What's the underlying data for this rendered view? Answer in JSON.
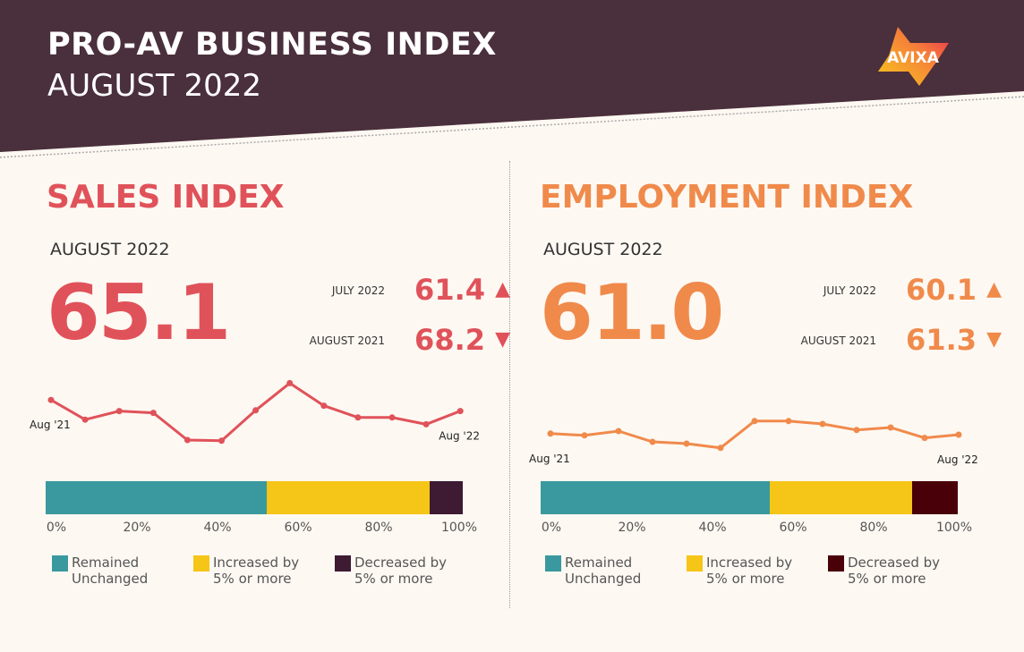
{
  "header": {
    "title": "PRO-AV BUSINESS INDEX",
    "subtitle": "AUGUST 2022",
    "logo_text": "AVIXA",
    "bg": "#4a2f3c"
  },
  "chart_data": [
    {
      "type": "line",
      "title": "SALES INDEX",
      "color": "#e0525a",
      "current_label": "AUGUST 2022",
      "current": "65.1",
      "comparisons": [
        {
          "label": "JULY 2022",
          "value": "61.4",
          "dir": "up"
        },
        {
          "label": "AUGUST 2021",
          "value": "68.2",
          "dir": "down"
        }
      ],
      "x_start_label": "Aug '21",
      "x_end_label": "Aug '22",
      "values": [
        68.2,
        62.7,
        65.1,
        64.6,
        57.0,
        56.8,
        65.3,
        72.9,
        66.6,
        63.3,
        63.3,
        61.4,
        65.1
      ],
      "ylim": [
        55,
        75
      ],
      "stacked_bar": {
        "type": "bar",
        "ticks": [
          "0%",
          "20%",
          "40%",
          "60%",
          "80%",
          "100%"
        ],
        "series": [
          {
            "name": "Remained Unchanged",
            "value": 53,
            "color": "#3a999e"
          },
          {
            "name": "Increased by 5% or more",
            "value": 39,
            "color": "#f5c518"
          },
          {
            "name": "Decreased by 5% or more",
            "value": 8,
            "color": "#3e1a33"
          }
        ]
      }
    },
    {
      "type": "line",
      "title": "EMPLOYMENT INDEX",
      "color": "#f08a4b",
      "current_label": "AUGUST 2022",
      "current": "61.0",
      "comparisons": [
        {
          "label": "JULY 2022",
          "value": "60.1",
          "dir": "up"
        },
        {
          "label": "AUGUST 2021",
          "value": "61.3",
          "dir": "down"
        }
      ],
      "x_start_label": "Aug '21",
      "x_end_label": "Aug '22",
      "values": [
        61.3,
        60.8,
        62.0,
        59.0,
        58.5,
        57.3,
        64.8,
        64.8,
        64.0,
        62.3,
        63.0,
        60.1,
        61.0
      ],
      "ylim": [
        50,
        70
      ],
      "stacked_bar": {
        "type": "bar",
        "ticks": [
          "0%",
          "20%",
          "40%",
          "60%",
          "80%",
          "100%"
        ],
        "series": [
          {
            "name": "Remained Unchanged",
            "value": 55,
            "color": "#3a999e"
          },
          {
            "name": "Increased by 5% or more",
            "value": 34,
            "color": "#f5c518"
          },
          {
            "name": "Decreased by 5% or more",
            "value": 11,
            "color": "#4a0008"
          }
        ]
      }
    }
  ]
}
